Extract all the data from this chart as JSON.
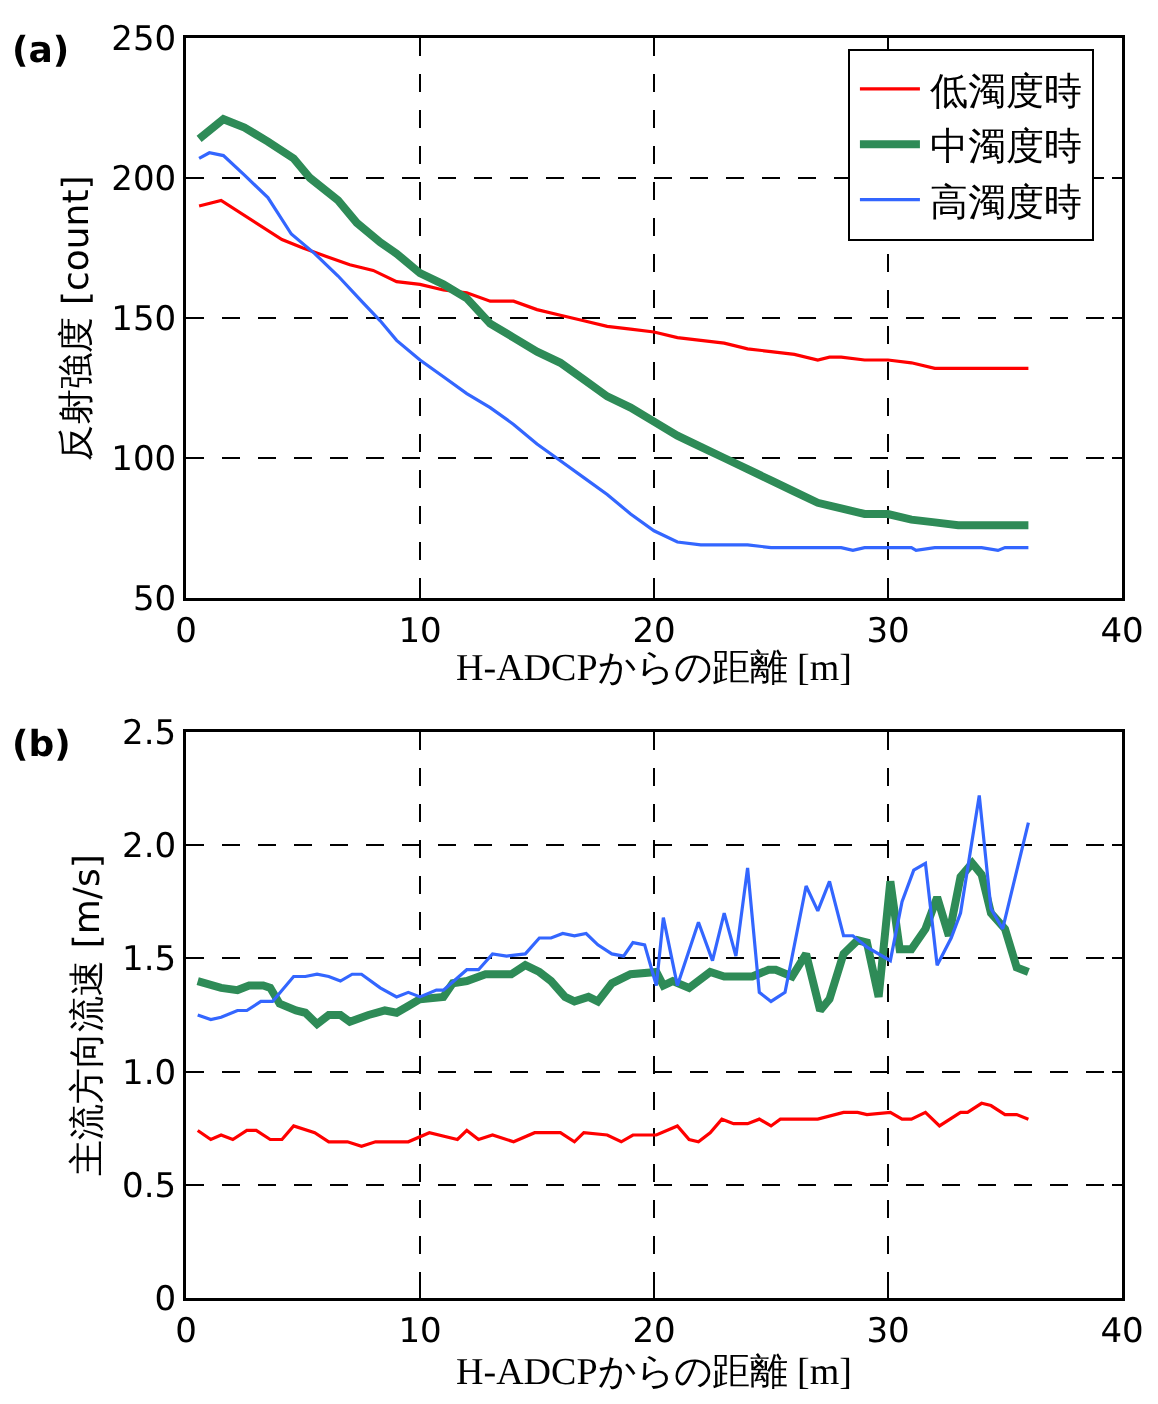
{
  "chart_data": [
    {
      "type": "line",
      "xlabel": "H-ADCPからの距離 [m]",
      "ylabel": "反射強度 [count]",
      "annotations": [
        "(a)"
      ],
      "xlim": [
        0,
        40
      ],
      "xticks": [
        0,
        10,
        20,
        30,
        40
      ],
      "ylim": [
        50,
        250
      ],
      "yticks": [
        50,
        100,
        150,
        200,
        250
      ],
      "grid": true,
      "legend": "top right",
      "line_style": "solid",
      "series": [
        {
          "name": "低濁度時",
          "color": "#ff0000",
          "x": [
            0.56,
            1.5,
            4.1,
            5,
            6,
            7,
            8,
            9,
            10,
            11,
            12,
            13,
            14,
            15,
            16,
            17,
            18,
            19,
            20,
            21,
            22,
            23,
            24,
            25,
            26,
            27,
            27.5,
            28,
            29,
            30,
            31,
            32,
            36
          ],
          "values": [
            190,
            192,
            178,
            175,
            172,
            169,
            167,
            163,
            162,
            160,
            159,
            156,
            156,
            153,
            151,
            149,
            147,
            146,
            145,
            143,
            142,
            141,
            139,
            138,
            137,
            135,
            136,
            136,
            135,
            135,
            134,
            132,
            132
          ]
        },
        {
          "name": "中濁度時",
          "color": "#2e8b57",
          "x": [
            0.56,
            1.6,
            2.5,
            3.5,
            4.6,
            5.3,
            6.5,
            7.3,
            8.3,
            9,
            10,
            11,
            12,
            13,
            14,
            15,
            16,
            17,
            18,
            19,
            20,
            21,
            22,
            23,
            24,
            25,
            26,
            27,
            28,
            29,
            30,
            31,
            32,
            33,
            36
          ],
          "values": [
            214,
            221,
            218,
            213,
            207,
            200,
            192,
            184,
            177,
            173,
            166,
            162,
            157,
            148,
            143,
            138,
            134,
            128,
            122,
            118,
            113,
            108,
            104,
            100,
            96,
            92,
            88,
            84,
            82,
            80,
            80,
            78,
            77,
            76,
            76
          ]
        },
        {
          "name": "高濁度時",
          "color": "#3366ff",
          "x": [
            0.56,
            1,
            1.6,
            2.5,
            3.5,
            4.5,
            5.5,
            6.5,
            7.5,
            8.3,
            9,
            10,
            11,
            12,
            13,
            14,
            15,
            16,
            17,
            18,
            19,
            20,
            21,
            22,
            24,
            25,
            28,
            28.5,
            29,
            30,
            31,
            31.2,
            32,
            34,
            34.7,
            35,
            36
          ],
          "values": [
            207,
            209,
            208,
            201,
            193,
            180,
            173,
            165,
            156,
            149,
            142,
            135,
            129,
            123,
            118,
            112,
            105,
            99,
            93,
            87,
            80,
            74,
            70,
            69,
            69,
            68,
            68,
            67,
            68,
            68,
            68,
            67,
            68,
            68,
            67,
            68,
            68
          ]
        }
      ]
    },
    {
      "type": "line",
      "xlabel": "H-ADCPからの距離 [m]",
      "ylabel": "主流方向流速 [m/s]",
      "annotations": [
        "(b)"
      ],
      "xlim": [
        0,
        40
      ],
      "xticks": [
        0,
        10,
        20,
        30,
        40
      ],
      "ylim": [
        0,
        2.5
      ],
      "yticks": [
        0,
        0.5,
        {
          "value": 1,
          "label": "1.0"
        },
        1.5,
        {
          "value": 2,
          "label": "2.0"
        },
        2.5
      ],
      "grid": true,
      "legend": false,
      "line_style": "solid",
      "series": [
        {
          "color": "#ff0000",
          "x": [
            0.5,
            1.06,
            1.5,
            2.0,
            2.6,
            3.0,
            3.6,
            4.1,
            4.6,
            5.5,
            6.1,
            6.9,
            7.5,
            8.1,
            9.5,
            10.4,
            11.6,
            12,
            12.5,
            13.1,
            14,
            14.9,
            16,
            16.6,
            17,
            18,
            18.6,
            19.1,
            20.1,
            21,
            21.5,
            21.9,
            22.4,
            22.9,
            23.4,
            24,
            24.5,
            25,
            25.4,
            27,
            28.1,
            28.7,
            29.1,
            30.1,
            30.6,
            31,
            31.6,
            32.2,
            33.1,
            33.4,
            34,
            34.4,
            35,
            35.5,
            36
          ],
          "values": [
            0.74,
            0.7,
            0.72,
            0.7,
            0.74,
            0.74,
            0.7,
            0.7,
            0.76,
            0.73,
            0.69,
            0.69,
            0.67,
            0.69,
            0.69,
            0.73,
            0.7,
            0.74,
            0.7,
            0.72,
            0.69,
            0.73,
            0.73,
            0.69,
            0.73,
            0.72,
            0.69,
            0.72,
            0.72,
            0.76,
            0.7,
            0.69,
            0.73,
            0.79,
            0.77,
            0.77,
            0.79,
            0.76,
            0.79,
            0.79,
            0.82,
            0.82,
            0.81,
            0.82,
            0.79,
            0.79,
            0.82,
            0.76,
            0.82,
            0.82,
            0.86,
            0.85,
            0.81,
            0.81,
            0.79
          ]
        },
        {
          "color": "#2e8b57",
          "x": [
            0.5,
            1.5,
            2.2,
            2.7,
            3.3,
            3.6,
            4.0,
            4.7,
            5.1,
            5.6,
            6.1,
            6.6,
            7.0,
            7.8,
            8.5,
            9.0,
            9.5,
            10,
            11,
            11.4,
            12,
            12.8,
            13.9,
            14.5,
            15.1,
            15.6,
            16.2,
            16.6,
            17.2,
            17.6,
            18.2,
            19,
            20.1,
            20.4,
            20.8,
            21.5,
            22.4,
            23,
            24.2,
            24.9,
            25.2,
            25.9,
            26.5,
            27.1,
            27.5,
            28.1,
            28.7,
            29.1,
            29.6,
            30.1,
            30.5,
            31.0,
            31.6,
            32.1,
            32.6,
            33.1,
            33.6,
            34.0,
            34.4,
            35,
            35.5,
            36
          ],
          "values": [
            1.4,
            1.37,
            1.36,
            1.38,
            1.38,
            1.37,
            1.3,
            1.27,
            1.26,
            1.21,
            1.25,
            1.25,
            1.22,
            1.25,
            1.27,
            1.26,
            1.29,
            1.32,
            1.33,
            1.39,
            1.4,
            1.43,
            1.43,
            1.47,
            1.44,
            1.4,
            1.33,
            1.31,
            1.33,
            1.31,
            1.39,
            1.43,
            1.44,
            1.38,
            1.4,
            1.37,
            1.44,
            1.42,
            1.42,
            1.45,
            1.45,
            1.42,
            1.52,
            1.27,
            1.32,
            1.52,
            1.58,
            1.57,
            1.33,
            1.84,
            1.54,
            1.54,
            1.63,
            1.77,
            1.6,
            1.86,
            1.92,
            1.87,
            1.7,
            1.63,
            1.46,
            1.44
          ]
        },
        {
          "color": "#3366ff",
          "x": [
            0.5,
            1.06,
            1.5,
            2.2,
            2.6,
            3.2,
            3.7,
            4.6,
            5.1,
            5.6,
            6.1,
            6.6,
            7.1,
            7.5,
            8.3,
            9.0,
            9.5,
            10,
            10.7,
            11,
            12,
            12.5,
            13.1,
            13.7,
            14.5,
            15.1,
            15.6,
            16.1,
            16.6,
            17.1,
            17.6,
            18.2,
            18.7,
            19.1,
            19.6,
            20.1,
            20.4,
            21,
            21.9,
            22.5,
            23,
            23.5,
            24,
            24.5,
            25,
            25.6,
            26.5,
            27,
            27.5,
            28.1,
            28.5,
            29.1,
            30.1,
            30.6,
            31.1,
            31.6,
            32.1,
            32.7,
            33.1,
            33.9,
            34.4,
            34.9,
            36
          ],
          "values": [
            1.25,
            1.23,
            1.24,
            1.27,
            1.27,
            1.31,
            1.31,
            1.42,
            1.42,
            1.43,
            1.42,
            1.4,
            1.43,
            1.43,
            1.37,
            1.33,
            1.35,
            1.33,
            1.36,
            1.36,
            1.45,
            1.45,
            1.52,
            1.51,
            1.52,
            1.59,
            1.59,
            1.61,
            1.6,
            1.61,
            1.56,
            1.52,
            1.51,
            1.57,
            1.56,
            1.38,
            1.68,
            1.38,
            1.66,
            1.49,
            1.7,
            1.51,
            1.9,
            1.35,
            1.31,
            1.35,
            1.82,
            1.71,
            1.84,
            1.6,
            1.6,
            1.55,
            1.49,
            1.75,
            1.89,
            1.92,
            1.47,
            1.59,
            1.7,
            2.22,
            1.72,
            1.63,
            2.1
          ]
        }
      ]
    }
  ]
}
